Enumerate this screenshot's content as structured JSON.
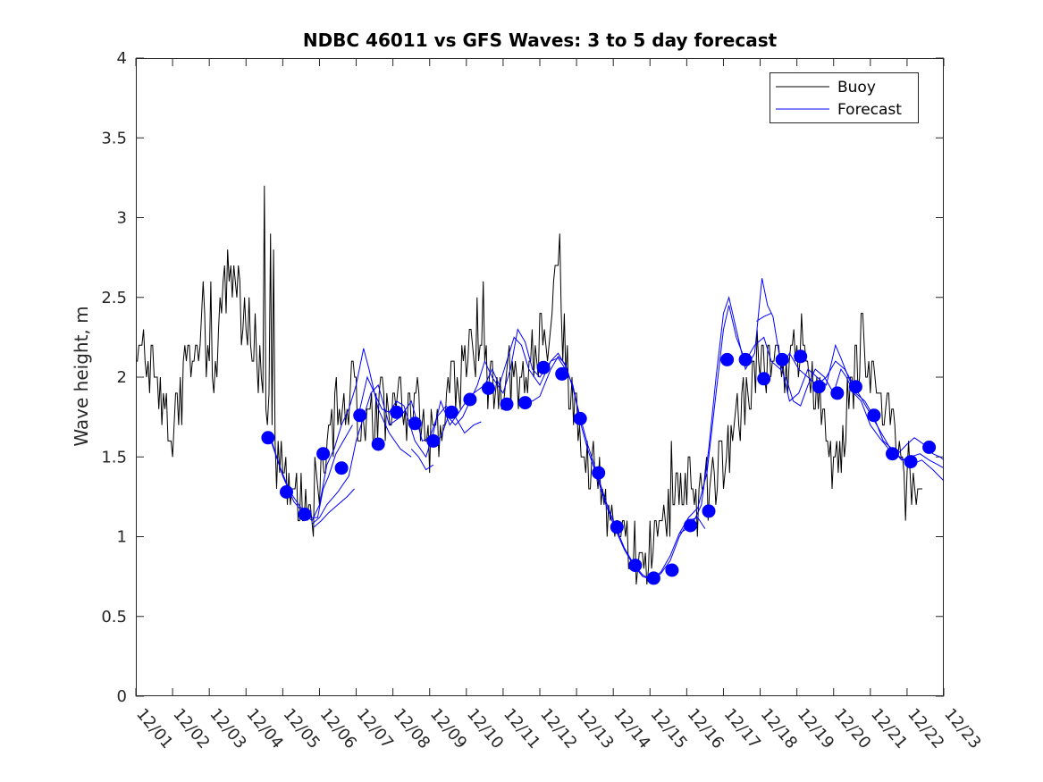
{
  "chart_data": {
    "type": "line",
    "title": "NDBC 46011 vs GFS Waves: 3 to 5 day forecast",
    "xlabel": "",
    "ylabel": "Wave height, m",
    "x_tick_labels": [
      "12/01",
      "12/02",
      "12/03",
      "12/04",
      "12/05",
      "12/06",
      "12/07",
      "12/08",
      "12/09",
      "12/10",
      "12/11",
      "12/12",
      "12/13",
      "12/14",
      "12/15",
      "12/16",
      "12/17",
      "12/18",
      "12/19",
      "12/20",
      "12/21",
      "12/22",
      "12/23"
    ],
    "xlim": [
      0,
      22
    ],
    "ylim": [
      0,
      4
    ],
    "y_ticks": [
      0,
      0.5,
      1,
      1.5,
      2,
      2.5,
      3,
      3.5,
      4
    ],
    "legend": {
      "position": "top-right",
      "entries": [
        {
          "label": "Buoy",
          "color": "#000000"
        },
        {
          "label": "Forecast",
          "color": "#0000ff"
        }
      ]
    },
    "colors": {
      "buoy": "#000000",
      "forecast": "#0000ff"
    },
    "buoy_anchors": [
      [
        0,
        2.1
      ],
      [
        0.25,
        2.1
      ],
      [
        0.5,
        2.0
      ],
      [
        0.8,
        1.8
      ],
      [
        1.0,
        1.65
      ],
      [
        1.2,
        1.9
      ],
      [
        1.4,
        2.1
      ],
      [
        1.6,
        2.2
      ],
      [
        1.8,
        2.25
      ],
      [
        2.0,
        2.0
      ],
      [
        2.2,
        2.1
      ],
      [
        2.4,
        2.45
      ],
      [
        2.5,
        2.65
      ],
      [
        2.6,
        2.55
      ],
      [
        2.8,
        2.45
      ],
      [
        3.0,
        2.4
      ],
      [
        3.3,
        2.15
      ],
      [
        3.5,
        1.9
      ],
      [
        3.8,
        1.5
      ],
      [
        4.1,
        1.35
      ],
      [
        4.4,
        1.2
      ],
      [
        4.7,
        1.12
      ],
      [
        5.0,
        1.4
      ],
      [
        5.3,
        1.7
      ],
      [
        5.6,
        1.8
      ],
      [
        5.9,
        1.85
      ],
      [
        6.2,
        1.65
      ],
      [
        6.6,
        1.8
      ],
      [
        7.0,
        1.9
      ],
      [
        7.3,
        1.8
      ],
      [
        7.6,
        1.85
      ],
      [
        8.0,
        1.6
      ],
      [
        8.3,
        1.65
      ],
      [
        8.6,
        1.9
      ],
      [
        8.9,
        2.05
      ],
      [
        9.1,
        2.1
      ],
      [
        9.4,
        2.2
      ],
      [
        9.7,
        1.9
      ],
      [
        10.0,
        1.95
      ],
      [
        10.3,
        2.0
      ],
      [
        10.6,
        2.05
      ],
      [
        10.9,
        2.15
      ],
      [
        11.2,
        2.3
      ],
      [
        11.5,
        2.5
      ],
      [
        11.8,
        1.95
      ],
      [
        12.1,
        1.7
      ],
      [
        12.4,
        1.45
      ],
      [
        12.7,
        1.25
      ],
      [
        13.0,
        1.05
      ],
      [
        13.3,
        0.95
      ],
      [
        13.6,
        0.9
      ],
      [
        13.9,
        0.9
      ],
      [
        14.2,
        0.95
      ],
      [
        14.5,
        1.15
      ],
      [
        14.8,
        1.4
      ],
      [
        15.1,
        1.35
      ],
      [
        15.4,
        1.2
      ],
      [
        15.7,
        1.35
      ],
      [
        16.0,
        1.5
      ],
      [
        16.3,
        1.7
      ],
      [
        16.6,
        1.85
      ],
      [
        16.9,
        2.05
      ],
      [
        17.2,
        2.1
      ],
      [
        17.5,
        2.1
      ],
      [
        17.8,
        2.1
      ],
      [
        18.1,
        2.2
      ],
      [
        18.4,
        2.05
      ],
      [
        18.7,
        1.9
      ],
      [
        18.9,
        1.5
      ],
      [
        19.1,
        1.5
      ],
      [
        19.3,
        1.7
      ],
      [
        19.6,
        2.0
      ],
      [
        19.8,
        2.2
      ],
      [
        20.0,
        2.0
      ],
      [
        20.3,
        1.85
      ],
      [
        20.6,
        1.7
      ],
      [
        20.9,
        1.55
      ],
      [
        21.1,
        1.3
      ],
      [
        21.3,
        1.2
      ],
      [
        21.45,
        1.25
      ]
    ],
    "buoy_spikes": [
      [
        3.5,
        3.2
      ],
      [
        3.65,
        2.9
      ],
      [
        3.75,
        2.8
      ],
      [
        11.55,
        2.9
      ],
      [
        11.4,
        2.7
      ],
      [
        9.45,
        2.6
      ],
      [
        9.3,
        2.5
      ],
      [
        6.0,
        2.0
      ],
      [
        5.9,
        2.1
      ],
      [
        1.85,
        2.6
      ],
      [
        2.05,
        2.6
      ],
      [
        2.3,
        2.5
      ],
      [
        4.85,
        1.0
      ],
      [
        19.75,
        2.4
      ],
      [
        18.95,
        1.3
      ],
      [
        20.95,
        1.1
      ],
      [
        13.5,
        0.8
      ],
      [
        14.6,
        1.6
      ],
      [
        15.3,
        0.95
      ]
    ],
    "forecast_lines": [
      [
        [
          3.65,
          1.62
        ],
        [
          3.9,
          1.45
        ],
        [
          4.2,
          1.28
        ],
        [
          4.5,
          1.18
        ],
        [
          4.75,
          1.12
        ],
        [
          4.95,
          1.12
        ],
        [
          5.1,
          1.3
        ],
        [
          5.25,
          1.38
        ],
        [
          5.45,
          1.52
        ],
        [
          5.65,
          1.6
        ],
        [
          5.9,
          1.7
        ]
      ],
      [
        [
          3.7,
          1.6
        ],
        [
          4.0,
          1.38
        ],
        [
          4.3,
          1.22
        ],
        [
          4.6,
          1.14
        ],
        [
          4.8,
          1.1
        ],
        [
          5.0,
          1.2
        ],
        [
          5.2,
          1.45
        ],
        [
          5.4,
          1.55
        ],
        [
          5.6,
          1.7
        ],
        [
          5.8,
          1.8
        ],
        [
          6.0,
          1.95
        ],
        [
          6.2,
          2.18
        ],
        [
          6.35,
          2.05
        ],
        [
          6.6,
          1.8
        ],
        [
          6.9,
          1.65
        ],
        [
          7.2,
          1.55
        ],
        [
          7.5,
          1.5
        ]
      ],
      [
        [
          4.8,
          1.08
        ],
        [
          5.0,
          1.12
        ],
        [
          5.2,
          1.2
        ],
        [
          5.5,
          1.28
        ],
        [
          5.8,
          1.38
        ],
        [
          6.0,
          1.6
        ],
        [
          6.2,
          1.75
        ],
        [
          6.4,
          1.9
        ],
        [
          6.6,
          1.95
        ],
        [
          6.9,
          1.7
        ],
        [
          7.2,
          1.75
        ],
        [
          7.5,
          1.85
        ],
        [
          7.8,
          1.6
        ],
        [
          8.0,
          1.62
        ],
        [
          8.2,
          1.75
        ],
        [
          8.45,
          1.82
        ],
        [
          8.7,
          1.75
        ],
        [
          8.95,
          1.65
        ],
        [
          9.2,
          1.7
        ],
        [
          9.4,
          1.72
        ]
      ],
      [
        [
          4.85,
          1.06
        ],
        [
          5.05,
          1.1
        ],
        [
          5.25,
          1.15
        ],
        [
          5.5,
          1.2
        ],
        [
          5.75,
          1.25
        ],
        [
          5.95,
          1.3
        ]
      ],
      [
        [
          6.1,
          1.8
        ],
        [
          6.3,
          2.0
        ],
        [
          6.5,
          1.9
        ],
        [
          6.7,
          1.8
        ],
        [
          6.9,
          1.78
        ],
        [
          7.1,
          1.85
        ],
        [
          7.3,
          1.82
        ],
        [
          7.6,
          1.6
        ],
        [
          7.9,
          1.5
        ],
        [
          8.1,
          1.65
        ],
        [
          8.3,
          1.85
        ],
        [
          8.55,
          1.7
        ],
        [
          8.8,
          1.78
        ],
        [
          9.0,
          1.85
        ],
        [
          9.2,
          1.9
        ],
        [
          9.5,
          1.95
        ],
        [
          9.7,
          2.05
        ],
        [
          9.9,
          1.95
        ],
        [
          10.1,
          2.1
        ],
        [
          10.3,
          2.25
        ],
        [
          10.5,
          2.2
        ],
        [
          10.7,
          2.05
        ],
        [
          11.0,
          1.95
        ],
        [
          11.3,
          2.1
        ],
        [
          11.5,
          2.15
        ],
        [
          11.75,
          2.05
        ]
      ],
      [
        [
          7.5,
          1.55
        ],
        [
          7.7,
          1.5
        ],
        [
          7.9,
          1.42
        ],
        [
          8.1,
          1.45
        ]
      ],
      [
        [
          8.3,
          1.62
        ],
        [
          8.5,
          1.75
        ],
        [
          8.7,
          1.7
        ],
        [
          8.9,
          1.75
        ],
        [
          9.1,
          1.85
        ],
        [
          9.3,
          1.95
        ],
        [
          9.5,
          2.1
        ],
        [
          9.7,
          2.0
        ],
        [
          10.0,
          1.9
        ],
        [
          10.2,
          2.05
        ],
        [
          10.4,
          2.3
        ],
        [
          10.6,
          2.22
        ],
        [
          10.8,
          2.05
        ],
        [
          11.0,
          2.0
        ],
        [
          11.3,
          2.1
        ],
        [
          11.5,
          2.12
        ],
        [
          11.7,
          2.05
        ],
        [
          11.9,
          1.95
        ],
        [
          12.1,
          1.72
        ],
        [
          12.3,
          1.55
        ],
        [
          12.55,
          1.38
        ],
        [
          12.8,
          1.2
        ],
        [
          13.05,
          1.05
        ],
        [
          13.3,
          0.92
        ],
        [
          13.55,
          0.82
        ],
        [
          13.8,
          0.75
        ],
        [
          14.05,
          0.73
        ],
        [
          14.3,
          0.77
        ],
        [
          14.55,
          0.85
        ],
        [
          14.8,
          1.0
        ],
        [
          15.05,
          1.1
        ],
        [
          15.3,
          1.12
        ],
        [
          15.5,
          1.05
        ]
      ],
      [
        [
          10.6,
          1.85
        ],
        [
          10.8,
          1.85
        ],
        [
          11.0,
          1.88
        ],
        [
          11.3,
          2.05
        ],
        [
          11.5,
          2.13
        ],
        [
          11.7,
          2.08
        ],
        [
          11.9,
          1.93
        ],
        [
          12.1,
          1.75
        ],
        [
          12.3,
          1.58
        ],
        [
          12.55,
          1.4
        ],
        [
          12.8,
          1.22
        ],
        [
          13.05,
          1.07
        ],
        [
          13.3,
          0.93
        ],
        [
          13.55,
          0.83
        ],
        [
          13.8,
          0.76
        ],
        [
          14.05,
          0.73
        ],
        [
          14.3,
          0.78
        ],
        [
          14.55,
          0.88
        ],
        [
          14.8,
          1.02
        ],
        [
          15.05,
          1.12
        ],
        [
          15.3,
          1.18
        ],
        [
          15.55,
          1.4
        ],
        [
          15.8,
          1.9
        ],
        [
          16.0,
          2.3
        ],
        [
          16.15,
          2.45
        ],
        [
          16.35,
          2.25
        ],
        [
          16.6,
          2.1
        ],
        [
          16.85,
          2.2
        ],
        [
          17.1,
          2.25
        ],
        [
          17.3,
          2.1
        ],
        [
          17.55,
          2.05
        ],
        [
          17.8,
          2.15
        ],
        [
          18.05,
          2.05
        ],
        [
          18.3,
          2.0
        ],
        [
          18.55,
          1.95
        ],
        [
          18.8,
          2.0
        ],
        [
          19.05,
          2.1
        ],
        [
          19.3,
          2.05
        ],
        [
          19.55,
          1.95
        ],
        [
          19.8,
          1.85
        ],
        [
          20.05,
          1.75
        ],
        [
          20.3,
          1.65
        ],
        [
          20.55,
          1.55
        ],
        [
          20.8,
          1.5
        ],
        [
          21.1,
          1.45
        ],
        [
          21.4,
          1.48
        ],
        [
          21.7,
          1.42
        ],
        [
          22.0,
          1.35
        ]
      ],
      [
        [
          14.8,
          1.02
        ],
        [
          15.0,
          1.05
        ],
        [
          15.2,
          1.1
        ],
        [
          15.4,
          1.2
        ],
        [
          15.6,
          1.55
        ],
        [
          15.8,
          2.0
        ],
        [
          16.0,
          2.4
        ],
        [
          16.15,
          2.5
        ],
        [
          16.35,
          2.3
        ],
        [
          16.6,
          2.05
        ],
        [
          16.85,
          2.15
        ],
        [
          17.05,
          2.62
        ],
        [
          17.2,
          2.45
        ],
        [
          17.35,
          2.38
        ],
        [
          17.55,
          2.1
        ],
        [
          17.8,
          1.85
        ],
        [
          18.05,
          1.9
        ],
        [
          18.3,
          2.05
        ],
        [
          18.55,
          2.0
        ],
        [
          18.8,
          1.95
        ],
        [
          19.05,
          2.2
        ],
        [
          19.2,
          2.12
        ],
        [
          19.4,
          2.0
        ],
        [
          19.6,
          1.9
        ],
        [
          19.85,
          1.85
        ],
        [
          20.1,
          1.75
        ],
        [
          20.35,
          1.6
        ],
        [
          20.6,
          1.55
        ],
        [
          20.85,
          1.48
        ],
        [
          21.1,
          1.5
        ],
        [
          21.35,
          1.52
        ],
        [
          21.6,
          1.48
        ],
        [
          21.85,
          1.45
        ],
        [
          22.0,
          1.43
        ]
      ],
      [
        [
          16.9,
          2.35
        ],
        [
          17.1,
          2.38
        ],
        [
          17.3,
          2.4
        ]
      ],
      [
        [
          17.7,
          2.0
        ],
        [
          17.9,
          1.85
        ],
        [
          18.1,
          1.82
        ],
        [
          18.3,
          1.95
        ],
        [
          18.5,
          2.05
        ],
        [
          18.75,
          2.0
        ],
        [
          19.0,
          1.9
        ],
        [
          19.2,
          2.05
        ],
        [
          19.35,
          2.0
        ],
        [
          19.55,
          1.9
        ],
        [
          19.75,
          1.85
        ],
        [
          20.0,
          1.7
        ],
        [
          20.25,
          1.62
        ],
        [
          20.5,
          1.55
        ],
        [
          20.75,
          1.52
        ],
        [
          21.0,
          1.58
        ],
        [
          21.2,
          1.62
        ],
        [
          21.45,
          1.58
        ],
        [
          21.7,
          1.52
        ],
        [
          21.9,
          1.5
        ],
        [
          22.0,
          1.48
        ]
      ]
    ],
    "forecast_markers": [
      [
        3.6,
        1.62
      ],
      [
        4.1,
        1.28
      ],
      [
        4.6,
        1.14
      ],
      [
        5.1,
        1.52
      ],
      [
        5.6,
        1.43
      ],
      [
        6.1,
        1.76
      ],
      [
        6.6,
        1.58
      ],
      [
        7.1,
        1.78
      ],
      [
        7.6,
        1.71
      ],
      [
        8.1,
        1.6
      ],
      [
        8.6,
        1.78
      ],
      [
        9.1,
        1.86
      ],
      [
        9.6,
        1.93
      ],
      [
        10.1,
        1.83
      ],
      [
        10.6,
        1.84
      ],
      [
        11.1,
        2.06
      ],
      [
        11.6,
        2.02
      ],
      [
        12.1,
        1.74
      ],
      [
        12.6,
        1.4
      ],
      [
        13.1,
        1.06
      ],
      [
        13.6,
        0.82
      ],
      [
        14.1,
        0.74
      ],
      [
        14.6,
        0.79
      ],
      [
        15.1,
        1.07
      ],
      [
        15.6,
        1.16
      ],
      [
        16.1,
        2.11
      ],
      [
        16.6,
        2.11
      ],
      [
        17.1,
        1.99
      ],
      [
        17.6,
        2.11
      ],
      [
        18.1,
        2.13
      ],
      [
        18.6,
        1.94
      ],
      [
        19.1,
        1.9
      ],
      [
        19.6,
        1.94
      ],
      [
        20.1,
        1.76
      ],
      [
        20.6,
        1.52
      ],
      [
        21.1,
        1.47
      ],
      [
        21.6,
        1.56
      ]
    ]
  }
}
